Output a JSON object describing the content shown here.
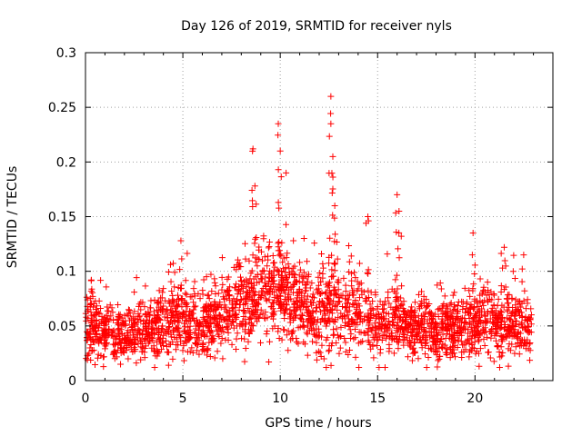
{
  "chart_data": {
    "type": "scatter",
    "title": "Day 126 of 2019, SRMTID for receiver nyls",
    "xlabel": "GPS time / hours",
    "ylabel": "SRMTID / TECUs",
    "xlim": [
      0,
      24
    ],
    "ylim": [
      0,
      0.3
    ],
    "xticks": [
      0,
      5,
      10,
      15,
      20
    ],
    "xtick_labels": [
      "0",
      "5",
      "10",
      "15",
      "20"
    ],
    "yticks": [
      0,
      0.05,
      0.1,
      0.15,
      0.2,
      0.25,
      0.3
    ],
    "ytick_labels": [
      "0",
      "0.05",
      "0.1",
      "0.15",
      "0.2",
      "0.25",
      "0.3"
    ],
    "grid": true,
    "marker": "+",
    "marker_color": "#ff0000",
    "series": [
      {
        "name": "SRMTID",
        "note": "dense scatter of ~3000 points; profile below gives typical value (y_mid), spread (y_spread) and peak excursions per hour",
        "x_range": [
          0,
          22.9
        ],
        "profile_x": [
          0,
          1,
          2,
          3,
          4,
          5,
          6,
          7,
          8,
          9,
          10,
          11,
          12,
          13,
          14,
          15,
          16,
          17,
          18,
          19,
          20,
          21,
          22,
          22.9
        ],
        "profile_y_mid": [
          0.048,
          0.045,
          0.042,
          0.045,
          0.052,
          0.055,
          0.05,
          0.06,
          0.068,
          0.08,
          0.08,
          0.07,
          0.062,
          0.065,
          0.062,
          0.055,
          0.052,
          0.05,
          0.045,
          0.048,
          0.052,
          0.05,
          0.052,
          0.045
        ],
        "profile_y_spread": [
          0.015,
          0.014,
          0.012,
          0.014,
          0.016,
          0.016,
          0.016,
          0.018,
          0.02,
          0.022,
          0.022,
          0.02,
          0.022,
          0.022,
          0.02,
          0.018,
          0.016,
          0.015,
          0.014,
          0.015,
          0.016,
          0.018,
          0.018,
          0.012
        ],
        "peaks": [
          {
            "x": 0.3,
            "y": 0.092
          },
          {
            "x": 4.9,
            "y": 0.128
          },
          {
            "x": 8.6,
            "y": 0.212
          },
          {
            "x": 8.7,
            "y": 0.178
          },
          {
            "x": 9.9,
            "y": 0.235
          },
          {
            "x": 10.0,
            "y": 0.21
          },
          {
            "x": 10.3,
            "y": 0.19
          },
          {
            "x": 12.6,
            "y": 0.26
          },
          {
            "x": 12.6,
            "y": 0.235
          },
          {
            "x": 12.7,
            "y": 0.205
          },
          {
            "x": 12.8,
            "y": 0.16
          },
          {
            "x": 14.5,
            "y": 0.15
          },
          {
            "x": 16.0,
            "y": 0.17
          },
          {
            "x": 16.1,
            "y": 0.155
          },
          {
            "x": 19.9,
            "y": 0.135
          },
          {
            "x": 21.5,
            "y": 0.122
          },
          {
            "x": 22.5,
            "y": 0.115
          }
        ]
      }
    ]
  }
}
